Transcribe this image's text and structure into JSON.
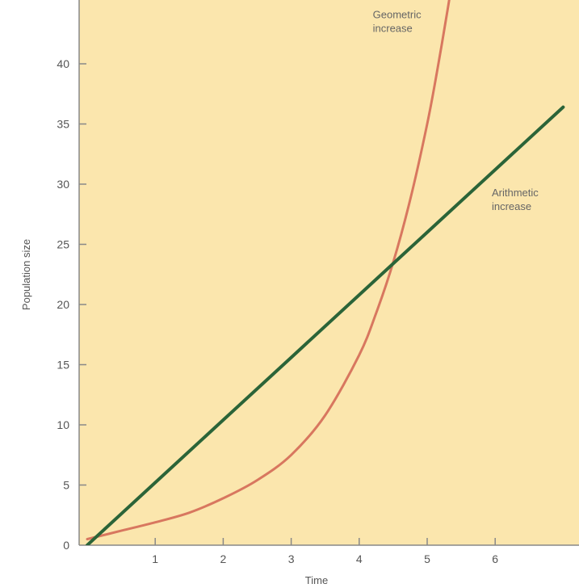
{
  "chart_data": {
    "type": "line",
    "title": "",
    "xlabel": "Time",
    "ylabel": "Population size",
    "xlim": [
      0,
      7.1
    ],
    "ylim": [
      0,
      44
    ],
    "x_ticks": [
      1,
      2,
      3,
      4,
      5,
      6
    ],
    "y_ticks": [
      0,
      5,
      10,
      15,
      20,
      25,
      30,
      35,
      40
    ],
    "grid": false,
    "legend": "none",
    "colors": {
      "plot_background": "#fbe6ad",
      "axis": "#888888",
      "arithmetic": "#2b6438",
      "geometric": "#d8775f"
    },
    "series": [
      {
        "name": "Arithmetic increase",
        "type": "line",
        "x": [
          0,
          1,
          2,
          3,
          4,
          5,
          6,
          7
        ],
        "y": [
          0,
          5.2,
          10.4,
          15.6,
          20.8,
          26,
          31.2,
          36.4
        ]
      },
      {
        "name": "Geometric increase",
        "type": "curve",
        "x": [
          0,
          0.5,
          1,
          1.5,
          2,
          2.5,
          3,
          3.5,
          4,
          4.25,
          4.5,
          4.75,
          5,
          5.15,
          5.3,
          5.4
        ],
        "y": [
          0.5,
          1.2,
          1.9,
          2.7,
          3.9,
          5.4,
          7.5,
          10.8,
          15.8,
          19.3,
          23.5,
          28.7,
          35,
          39.5,
          44.5,
          48
        ]
      }
    ],
    "annotations": [
      {
        "id": "geometric",
        "lines": [
          "Geometric",
          "increase"
        ],
        "x": 4.2,
        "y": 43.8
      },
      {
        "id": "arithmetic",
        "lines": [
          "Arithmetic",
          "increase"
        ],
        "x": 5.95,
        "y": 29
      }
    ]
  }
}
